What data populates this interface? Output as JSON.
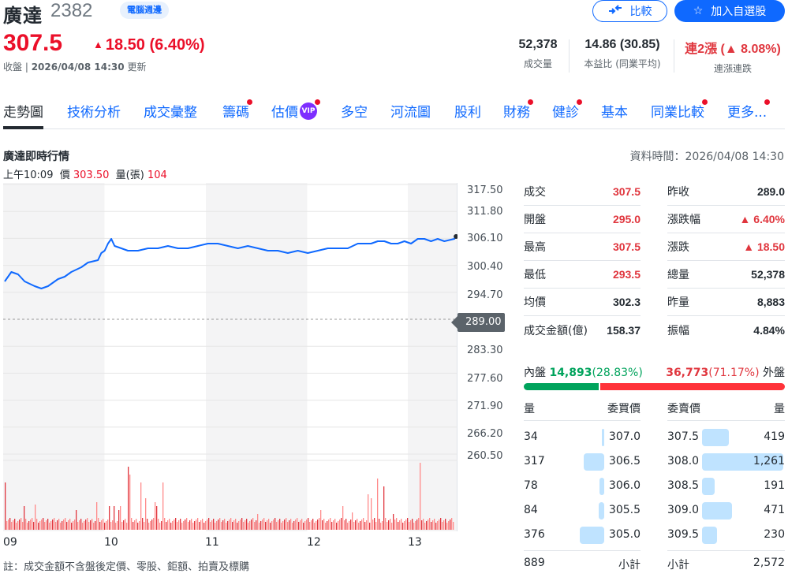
{
  "header": {
    "stock_name": "廣達",
    "stock_code": "2382",
    "industry_tag": "電腦週邊",
    "price": "307.5",
    "change": "18.50",
    "change_pct": "(6.40%)",
    "change_arrow": "▲",
    "status_label": "收盤",
    "status_time": "2026/04/08 14:30",
    "status_suffix": "更新",
    "compare_button": "比較",
    "watchlist_button": "加入自選股",
    "kpis": [
      {
        "value": "52,378",
        "label": "成交量"
      },
      {
        "value": "14.86 (30.85)",
        "label": "本益比 (同業平均)"
      },
      {
        "value": "連2漲 (▲ 8.08%)",
        "label": "連漲連跌"
      }
    ]
  },
  "tabs": [
    {
      "label": "走勢圖",
      "active": true,
      "dot": false
    },
    {
      "label": "技術分析",
      "dot": false
    },
    {
      "label": "成交彙整",
      "dot": false
    },
    {
      "label": "籌碼",
      "dot": true
    },
    {
      "label": "估價",
      "dot": true,
      "badge": "VIP"
    },
    {
      "label": "多空",
      "dot": false
    },
    {
      "label": "河流圖",
      "dot": false
    },
    {
      "label": "股利",
      "dot": false
    },
    {
      "label": "財務",
      "dot": true
    },
    {
      "label": "健診",
      "dot": true
    },
    {
      "label": "基本",
      "dot": false
    },
    {
      "label": "同業比較",
      "dot": true
    },
    {
      "label": "更多...",
      "dot": true
    }
  ],
  "chart_section": {
    "title": "廣達即時行情",
    "data_time": "資料時間：2026/04/08 14:30",
    "hover": {
      "time": "上午10:09",
      "price_label": "價",
      "price": "303.50",
      "vol_label": "量(張)",
      "vol": "104"
    },
    "note": "註：成交金額不含盤後定價、零股、鉅額、拍賣及標購"
  },
  "chart_data": {
    "type": "line",
    "title": "廣達即時行情",
    "note": "Approximate values estimated from the rendered line; not source tick data.",
    "y_ticks": [
      "317.50",
      "311.80",
      "306.10",
      "300.40",
      "294.70",
      "289.00",
      "283.30",
      "277.60",
      "271.90",
      "266.20",
      "260.50"
    ],
    "ylim": [
      260.5,
      317.5
    ],
    "prev_close": "289.00",
    "x_ticks": [
      "09",
      "10",
      "11",
      "12",
      "13"
    ],
    "series": [
      {
        "name": "price",
        "color": "#0f69ff",
        "points": [
          [
            0,
            297
          ],
          [
            4,
            299
          ],
          [
            8,
            298.5
          ],
          [
            12,
            297
          ],
          [
            18,
            296
          ],
          [
            22,
            295.5
          ],
          [
            26,
            296
          ],
          [
            32,
            297.5
          ],
          [
            36,
            298
          ],
          [
            40,
            299
          ],
          [
            46,
            300
          ],
          [
            50,
            301
          ],
          [
            56,
            301.5
          ],
          [
            58,
            303
          ],
          [
            60,
            303.5
          ],
          [
            62,
            305
          ],
          [
            64,
            306
          ],
          [
            66,
            304.5
          ],
          [
            70,
            304
          ],
          [
            74,
            303.5
          ],
          [
            80,
            303.5
          ],
          [
            86,
            304
          ],
          [
            92,
            304
          ],
          [
            98,
            304.5
          ],
          [
            104,
            304
          ],
          [
            110,
            304
          ],
          [
            116,
            304.5
          ],
          [
            122,
            305
          ],
          [
            128,
            305
          ],
          [
            134,
            304.5
          ],
          [
            140,
            304
          ],
          [
            146,
            304.5
          ],
          [
            152,
            304
          ],
          [
            158,
            303.5
          ],
          [
            164,
            303.5
          ],
          [
            170,
            303
          ],
          [
            176,
            303.5
          ],
          [
            182,
            303
          ],
          [
            188,
            303.5
          ],
          [
            194,
            304
          ],
          [
            200,
            304
          ],
          [
            206,
            304
          ],
          [
            212,
            305
          ],
          [
            216,
            305
          ],
          [
            220,
            305
          ],
          [
            224,
            305.5
          ],
          [
            228,
            305.5
          ],
          [
            232,
            305
          ],
          [
            236,
            305
          ],
          [
            240,
            305.5
          ],
          [
            244,
            305
          ],
          [
            248,
            306
          ],
          [
            252,
            306
          ],
          [
            256,
            305.5
          ],
          [
            260,
            306
          ],
          [
            264,
            305.5
          ],
          [
            270,
            306
          ],
          [
            271,
            306.5
          ]
        ]
      },
      {
        "name": "volume",
        "color": "#ff6f6f",
        "note": "Synthesized baseline; visible spikes placed at approximate positions."
      }
    ]
  },
  "stats": {
    "left": [
      {
        "label": "成交",
        "value": "307.5",
        "color": "red"
      },
      {
        "label": "開盤",
        "value": "295.0",
        "color": "red"
      },
      {
        "label": "最高",
        "value": "307.5",
        "color": "red"
      },
      {
        "label": "最低",
        "value": "293.5",
        "color": "red"
      },
      {
        "label": "均價",
        "value": "302.3",
        "color": "black"
      },
      {
        "label": "成交金額(億)",
        "value": "158.37",
        "color": "black"
      }
    ],
    "right": [
      {
        "label": "昨收",
        "value": "289.0",
        "color": "black"
      },
      {
        "label": "漲跌幅",
        "value": "▲ 6.40%",
        "color": "red"
      },
      {
        "label": "漲跌",
        "value": "▲ 18.50",
        "color": "red"
      },
      {
        "label": "總量",
        "value": "52,378",
        "color": "black"
      },
      {
        "label": "昨量",
        "value": "8,883",
        "color": "black"
      },
      {
        "label": "振幅",
        "value": "4.84%",
        "color": "black"
      }
    ]
  },
  "inner_outer": {
    "inner_label": "內盤",
    "inner_value": "14,893",
    "inner_pct": "(28.83%)",
    "outer_value": "36,773",
    "outer_pct": "(71.17%)",
    "outer_label": "外盤",
    "inner_ratio": 28.83
  },
  "order_book": {
    "headers": {
      "bid_vol": "量",
      "bid_price": "委買價",
      "ask_price": "委賣價",
      "ask_vol": "量"
    },
    "bids": [
      {
        "vol": "34",
        "price": "307.0",
        "n": 34
      },
      {
        "vol": "317",
        "price": "306.5",
        "n": 317
      },
      {
        "vol": "78",
        "price": "306.0",
        "n": 78
      },
      {
        "vol": "84",
        "price": "305.5",
        "n": 84
      },
      {
        "vol": "376",
        "price": "305.0",
        "n": 376
      }
    ],
    "asks": [
      {
        "price": "307.5",
        "vol": "419",
        "n": 419
      },
      {
        "price": "308.0",
        "vol": "1,261",
        "n": 1261
      },
      {
        "price": "308.5",
        "vol": "191",
        "n": 191
      },
      {
        "price": "309.0",
        "vol": "471",
        "n": 471
      },
      {
        "price": "309.5",
        "vol": "230",
        "n": 230
      }
    ],
    "bid_subtotal": "889",
    "ask_subtotal": "2,572",
    "subtotal_label": "小計"
  }
}
